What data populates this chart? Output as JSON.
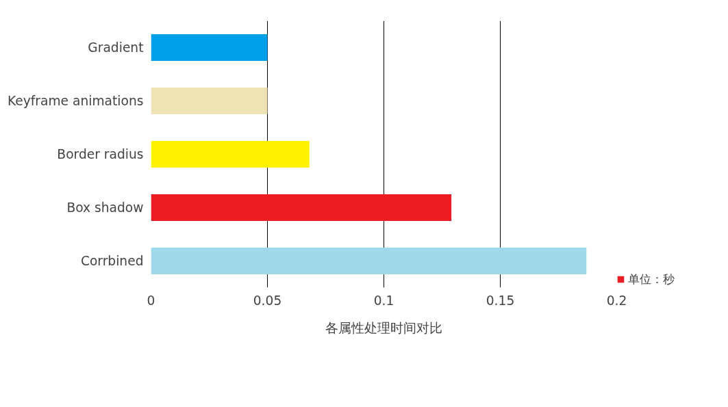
{
  "chart_data": {
    "type": "bar",
    "orientation": "horizontal",
    "xlabel": "各属性处理时间对比",
    "categories": [
      "Gradient",
      "Keyframe animations",
      "Border radius",
      "Box shadow",
      "Corrbined"
    ],
    "series": [
      {
        "name": "单位：秒",
        "color": "#ed1c24",
        "values": [
          0.05,
          0.05,
          0.068,
          0.129,
          0.187
        ],
        "colors": [
          "#00a0e9",
          "#eee3b4",
          "#fff100",
          null,
          "#9fd9ea"
        ]
      }
    ],
    "xlim": [
      0,
      0.2
    ],
    "xticks": [
      0,
      0.05,
      0.1,
      0.15,
      0.2
    ],
    "grid": "x",
    "legend": "bottom right"
  }
}
